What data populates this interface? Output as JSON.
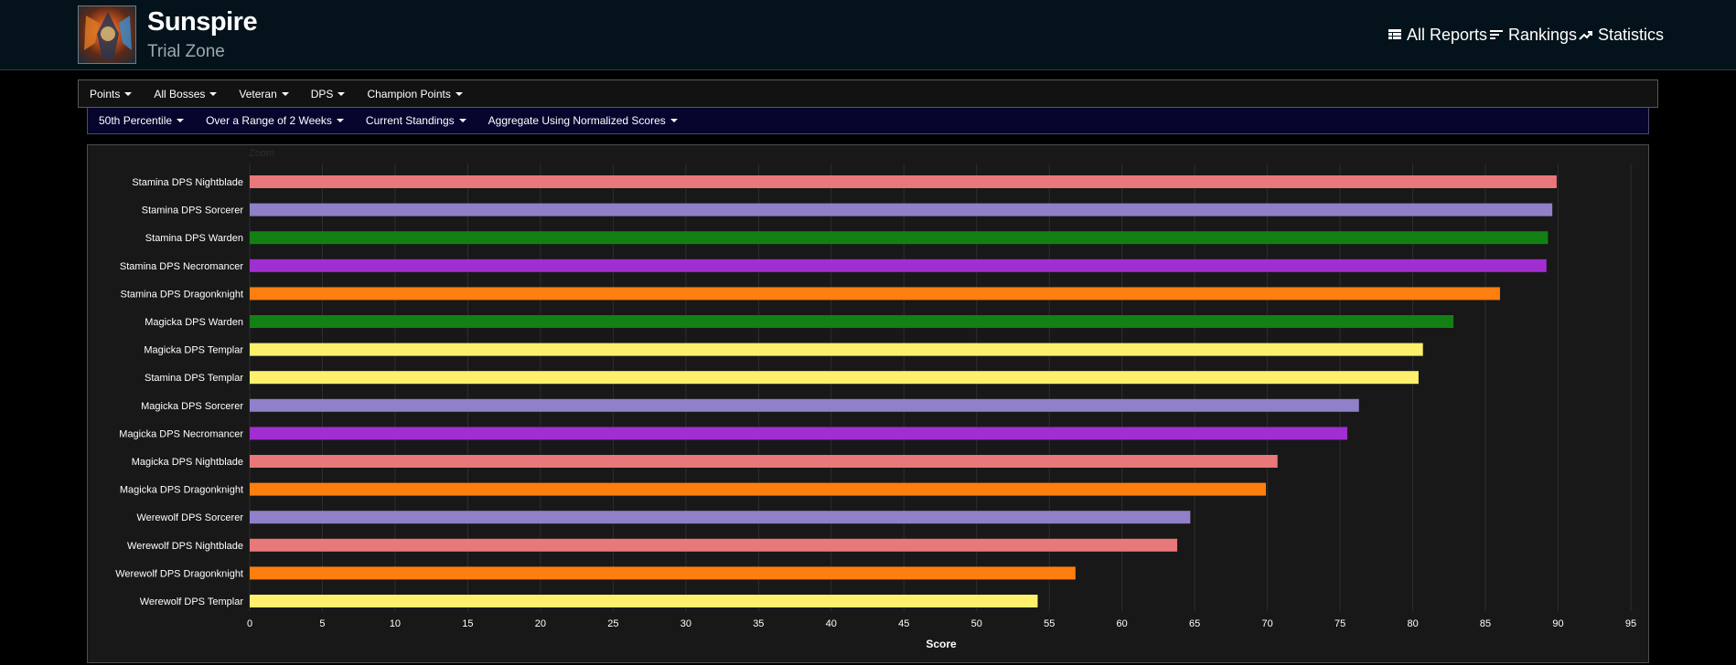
{
  "header": {
    "title": "Sunspire",
    "subtitle": "Trial Zone",
    "icon": "zone-emblem",
    "nav": [
      {
        "label": "All Reports",
        "icon": "table-icon"
      },
      {
        "label": "Rankings",
        "icon": "rankings-icon"
      },
      {
        "label": "Statistics",
        "icon": "trend-icon"
      }
    ]
  },
  "filters_primary": [
    "Points",
    "All Bosses",
    "Veteran",
    "DPS",
    "Champion Points"
  ],
  "filters_secondary": [
    "50th Percentile",
    "Over a Range of 2 Weeks",
    "Current Standings",
    "Aggregate Using Normalized Scores"
  ],
  "chart_data": {
    "type": "bar",
    "orientation": "horizontal",
    "zoom_label": "Zoom",
    "xlabel": "Score",
    "xlim": [
      0,
      95
    ],
    "xticks": [
      0,
      5,
      10,
      15,
      20,
      25,
      30,
      35,
      40,
      45,
      50,
      55,
      60,
      65,
      70,
      75,
      80,
      85,
      90,
      95
    ],
    "grid": true,
    "categories": [
      "Stamina DPS Nightblade",
      "Stamina DPS Sorcerer",
      "Stamina DPS Warden",
      "Stamina DPS Necromancer",
      "Stamina DPS Dragonknight",
      "Magicka DPS Warden",
      "Magicka DPS Templar",
      "Stamina DPS Templar",
      "Magicka DPS Sorcerer",
      "Magicka DPS Necromancer",
      "Magicka DPS Nightblade",
      "Magicka DPS Dragonknight",
      "Werewolf DPS Sorcerer",
      "Werewolf DPS Nightblade",
      "Werewolf DPS Dragonknight",
      "Werewolf DPS Templar"
    ],
    "values": [
      89.9,
      89.6,
      89.3,
      89.2,
      86.0,
      82.8,
      80.7,
      80.4,
      76.3,
      75.5,
      70.7,
      69.9,
      64.7,
      63.8,
      56.8,
      54.2
    ],
    "colors": [
      "#e8787a",
      "#9080c8",
      "#138013",
      "#a12ed0",
      "#ff7f0e",
      "#138013",
      "#fef06d",
      "#fef06d",
      "#9080c8",
      "#a12ed0",
      "#e8787a",
      "#ff7f0e",
      "#9080c8",
      "#e8787a",
      "#ff7f0e",
      "#fef06d"
    ]
  }
}
